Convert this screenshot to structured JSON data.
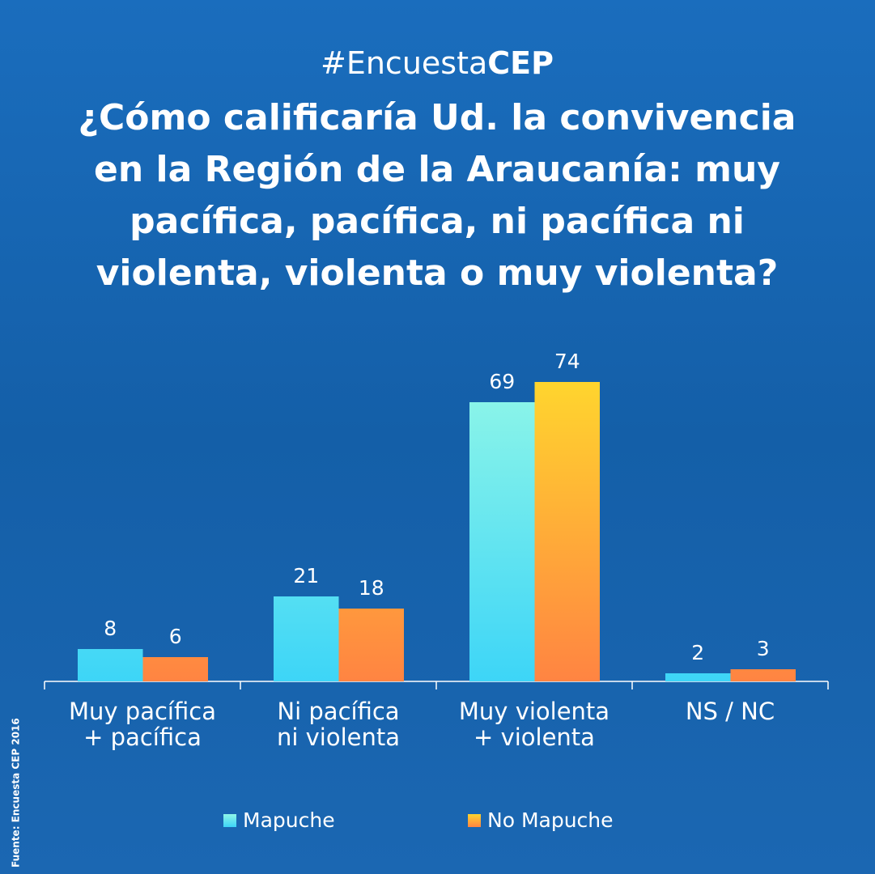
{
  "chart_data": {
    "type": "bar",
    "hashtag": [
      "#Encuesta",
      "CEP"
    ],
    "title": [
      "¿Cómo calificaría Ud. la convivencia",
      "en la Región de la Araucanía: muy",
      "pacífica, pacífica, ni pacífica ni",
      "violenta, violenta o muy violenta?"
    ],
    "categories": [
      [
        "Muy pacífica",
        "+ pacífica"
      ],
      [
        "Ni pacífica",
        "ni violenta"
      ],
      [
        "Muy violenta",
        "+ violenta"
      ],
      [
        "NS / NC"
      ]
    ],
    "series": [
      {
        "name": "Mapuche",
        "color": "#3dd5f7",
        "values": [
          8,
          21,
          69,
          2
        ]
      },
      {
        "name": "No Mapuche",
        "color": "#ff8442",
        "values": [
          6,
          18,
          74,
          3
        ]
      }
    ],
    "source": "Fuente: Encuesta CEP 2016"
  }
}
